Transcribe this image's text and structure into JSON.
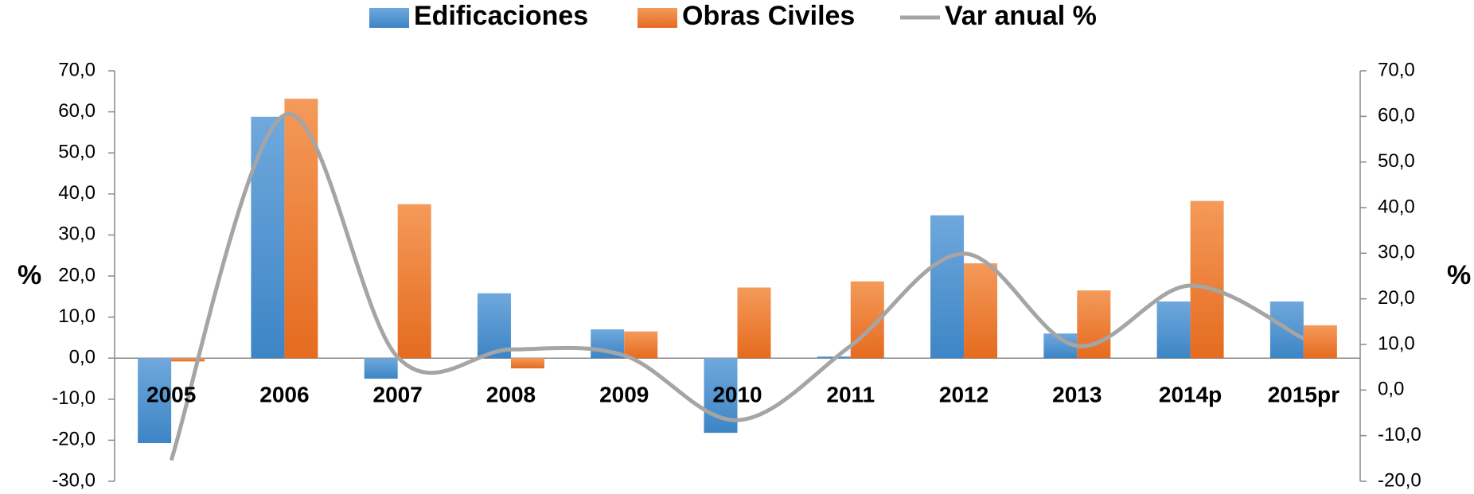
{
  "chart_data": {
    "type": "bar_line",
    "categories": [
      "2005",
      "2006",
      "2007",
      "2008",
      "2009",
      "2010",
      "2011",
      "2012",
      "2013",
      "2014p",
      "2015pr"
    ],
    "series": [
      {
        "name": "Edificaciones",
        "color": "#5b9bd5",
        "values": [
          -20.7,
          58.8,
          -5.0,
          15.8,
          7.0,
          -18.2,
          0.4,
          34.8,
          6.0,
          13.8,
          13.8
        ]
      },
      {
        "name": "Obras Civiles",
        "color": "#ed7d31",
        "values": [
          -0.8,
          63.2,
          37.5,
          -2.5,
          6.5,
          17.2,
          18.7,
          23.1,
          16.5,
          38.3,
          8.0
        ]
      },
      {
        "name": "Var anual %",
        "color": "#a5a5a5",
        "axis": "y2",
        "smooth": true,
        "values": [
          -15.4,
          60.3,
          7.2,
          8.9,
          7.6,
          -6.6,
          9.7,
          29.9,
          9.7,
          22.9,
          11.3
        ]
      }
    ],
    "ylabel": "%",
    "y2label": "%",
    "ylim": [
      -30,
      70
    ],
    "yticks": [
      {
        "value": -30,
        "label": "-30,0"
      },
      {
        "value": -20,
        "label": "-20,0"
      },
      {
        "value": -10,
        "label": "-10,0"
      },
      {
        "value": 0,
        "label": "0,0"
      },
      {
        "value": 10,
        "label": "10,0"
      },
      {
        "value": 20,
        "label": "20,0"
      },
      {
        "value": 30,
        "label": "30,0"
      },
      {
        "value": 40,
        "label": "40,0"
      },
      {
        "value": 50,
        "label": "50,0"
      },
      {
        "value": 60,
        "label": "60,0"
      },
      {
        "value": 70,
        "label": "70,0"
      }
    ],
    "y2lim": [
      -20,
      70
    ],
    "y2ticks": [
      {
        "value": -20,
        "label": "-20,0"
      },
      {
        "value": -10,
        "label": "-10,0"
      },
      {
        "value": 0,
        "label": "0,0"
      },
      {
        "value": 10,
        "label": "10,0"
      },
      {
        "value": 20,
        "label": "20,0"
      },
      {
        "value": 30,
        "label": "30,0"
      },
      {
        "value": 40,
        "label": "40,0"
      },
      {
        "value": 50,
        "label": "50,0"
      },
      {
        "value": 60,
        "label": "60,0"
      },
      {
        "value": 70,
        "label": "70,0"
      }
    ],
    "legend": "top",
    "grid": false
  }
}
